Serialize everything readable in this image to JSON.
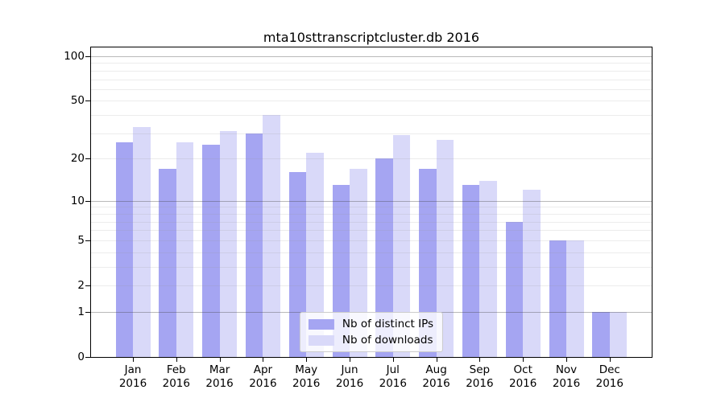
{
  "chart_data": {
    "type": "bar",
    "title": "mta10sttranscriptcluster.db 2016",
    "categories": [
      "Jan",
      "Feb",
      "Mar",
      "Apr",
      "May",
      "Jun",
      "Jul",
      "Aug",
      "Sep",
      "Oct",
      "Nov",
      "Dec"
    ],
    "year": "2016",
    "series": [
      {
        "name": "Nb of distinct IPs",
        "color": "#a5a5f2",
        "values": [
          26,
          17,
          25,
          30,
          16,
          13,
          20,
          17,
          13,
          7,
          5,
          1
        ]
      },
      {
        "name": "Nb of downloads",
        "color": "#d9d9f9",
        "values": [
          33,
          26,
          31,
          40,
          22,
          17,
          29,
          27,
          14,
          12,
          5,
          1
        ]
      }
    ],
    "yscale": "log1p",
    "ylim": [
      0,
      116
    ],
    "yticks_labeled": [
      0,
      1,
      2,
      5,
      10,
      20,
      50,
      100
    ],
    "grid_major": [
      1,
      10,
      100
    ],
    "grid_minor": [
      2,
      3,
      4,
      5,
      6,
      7,
      8,
      9,
      20,
      30,
      40,
      50,
      60,
      70,
      80,
      90
    ],
    "legend_position": "lower center",
    "grid": true,
    "colors": {
      "grid_major": "#b0b0b0",
      "grid_minor": "#e4e4e4",
      "axis": "#000000",
      "background": "#ffffff"
    }
  }
}
